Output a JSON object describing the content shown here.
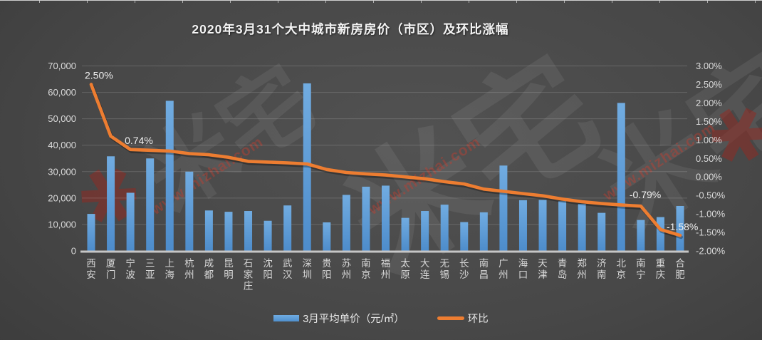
{
  "title": "2020年3月31个大中城市新房房价（市区）及环比涨幅",
  "watermark": {
    "logo_text": "米宅",
    "url_text": "www.mizhai.com",
    "logo_glyph": "✱"
  },
  "chart_data": {
    "type": "bar",
    "subtype": "bar-line-combo",
    "title": "2020年3月31个大中城市新房房价（市区）及环比涨幅",
    "grid": true,
    "legend_position": "bottom",
    "categories": [
      "西安",
      "厦门",
      "宁波",
      "三亚",
      "上海",
      "杭州",
      "成都",
      "昆明",
      "石家庄",
      "沈阳",
      "武汉",
      "深圳",
      "贵阳",
      "苏州",
      "南京",
      "福州",
      "太原",
      "大连",
      "无锡",
      "长沙",
      "南昌",
      "广州",
      "海口",
      "天津",
      "青岛",
      "郑州",
      "济南",
      "北京",
      "南宁",
      "重庆",
      "合肥"
    ],
    "series": [
      {
        "name": "3月平均单价（元/㎡）",
        "type": "bar",
        "axis": "left",
        "color": "#5B9BD5",
        "values": [
          14000,
          35800,
          22000,
          35000,
          56800,
          30000,
          15300,
          14800,
          15100,
          11400,
          17200,
          63400,
          10800,
          21200,
          24300,
          24700,
          12500,
          15100,
          17500,
          10900,
          14600,
          32300,
          19200,
          19300,
          18800,
          17800,
          14400,
          56000,
          11700,
          12800,
          17000
        ]
      },
      {
        "name": "环比",
        "type": "line",
        "axis": "right",
        "color": "#ED7D31",
        "values": [
          2.5,
          1.1,
          0.74,
          0.72,
          0.7,
          0.63,
          0.6,
          0.53,
          0.42,
          0.4,
          0.38,
          0.35,
          0.2,
          0.12,
          0.08,
          0.05,
          0.0,
          -0.05,
          -0.13,
          -0.19,
          -0.33,
          -0.39,
          -0.45,
          -0.51,
          -0.6,
          -0.67,
          -0.72,
          -0.76,
          -0.79,
          -1.42,
          -1.58
        ]
      }
    ],
    "left_axis": {
      "min": 0,
      "max": 70000,
      "step": 10000,
      "tick_labels": [
        "0",
        "10,000",
        "20,000",
        "30,000",
        "40,000",
        "50,000",
        "60,000",
        "70,000"
      ]
    },
    "right_axis": {
      "min": -2,
      "max": 3,
      "step": 0.5,
      "tick_labels": [
        "-2.00%",
        "-1.50%",
        "-1.00%",
        "-0.50%",
        "0.00%",
        "0.50%",
        "1.00%",
        "1.50%",
        "2.00%",
        "2.50%",
        "3.00%"
      ]
    },
    "annotations": [
      {
        "category": "西安",
        "label": "2.50%"
      },
      {
        "category": "宁波",
        "label": "0.74%"
      },
      {
        "category": "南宁",
        "label": "-0.79%"
      },
      {
        "category": "合肥",
        "label": "-1.58%"
      }
    ]
  }
}
